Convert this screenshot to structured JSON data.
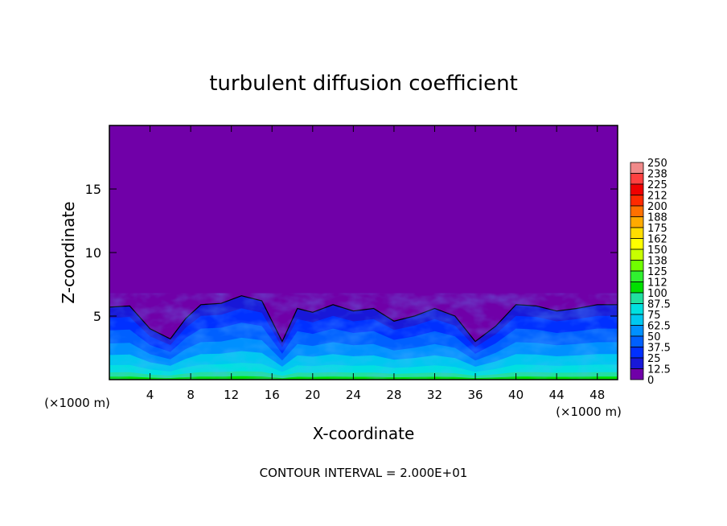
{
  "chart_data": {
    "type": "heatmap",
    "title": "turbulent diffusion coefficient",
    "xlabel": "X-coordinate",
    "ylabel": "Z-coordinate",
    "x_unit_left": "(×1000 m)",
    "x_unit_right": "(×1000 m)",
    "xlim": [
      0,
      50
    ],
    "ylim": [
      0,
      20
    ],
    "x_ticks": [
      4,
      8,
      12,
      16,
      20,
      24,
      28,
      32,
      36,
      40,
      44,
      48
    ],
    "x_tick_labels": [
      "4",
      "8",
      "12",
      "16",
      "20",
      "24",
      "28",
      "32",
      "36",
      "40",
      "44",
      "48"
    ],
    "y_ticks": [
      5,
      10,
      15
    ],
    "y_tick_labels": [
      "5",
      "10",
      "15"
    ],
    "footer": "CONTOUR INTERVAL = 2.000E+01",
    "colorbar": {
      "labels": [
        "250",
        "238",
        "225",
        "212",
        "200",
        "188",
        "175",
        "162",
        "150",
        "138",
        "125",
        "112",
        "100",
        "87.5",
        "75",
        "62.5",
        "50",
        "37.5",
        "25",
        "12.5",
        "0"
      ],
      "colors": [
        "#f08a8a",
        "#ff4040",
        "#f00000",
        "#ff2a00",
        "#ff7000",
        "#ffaa00",
        "#ffdd00",
        "#ffff00",
        "#c8ff00",
        "#70ff00",
        "#30f030",
        "#00e000",
        "#20e0a0",
        "#00e0e0",
        "#00c8f0",
        "#0090ff",
        "#0060ff",
        "#0030ff",
        "#1818d8",
        "#7000a8"
      ]
    },
    "background_value_color": "#7000a8",
    "turbulent_region": {
      "description_level_colors": [
        "#1818d8",
        "#0030ff",
        "#0060ff",
        "#0090ff",
        "#00c8f0",
        "#00e0e0",
        "#20e0a0",
        "#00e000"
      ],
      "top_profile": [
        {
          "x": 0,
          "z": 5.7
        },
        {
          "x": 2,
          "z": 5.8
        },
        {
          "x": 4,
          "z": 4.0
        },
        {
          "x": 6,
          "z": 3.2
        },
        {
          "x": 7.5,
          "z": 4.8
        },
        {
          "x": 9,
          "z": 5.9
        },
        {
          "x": 11,
          "z": 6.0
        },
        {
          "x": 13,
          "z": 6.6
        },
        {
          "x": 15,
          "z": 6.2
        },
        {
          "x": 17,
          "z": 3.0
        },
        {
          "x": 18.5,
          "z": 5.6
        },
        {
          "x": 20,
          "z": 5.3
        },
        {
          "x": 22,
          "z": 5.9
        },
        {
          "x": 24,
          "z": 5.4
        },
        {
          "x": 26,
          "z": 5.6
        },
        {
          "x": 28,
          "z": 4.6
        },
        {
          "x": 30,
          "z": 5.0
        },
        {
          "x": 32,
          "z": 5.6
        },
        {
          "x": 34,
          "z": 5.0
        },
        {
          "x": 36,
          "z": 3.0
        },
        {
          "x": 38,
          "z": 4.2
        },
        {
          "x": 40,
          "z": 5.9
        },
        {
          "x": 42,
          "z": 5.8
        },
        {
          "x": 44,
          "z": 5.4
        },
        {
          "x": 46,
          "z": 5.6
        },
        {
          "x": 48,
          "z": 5.9
        },
        {
          "x": 50,
          "z": 5.9
        }
      ]
    }
  }
}
